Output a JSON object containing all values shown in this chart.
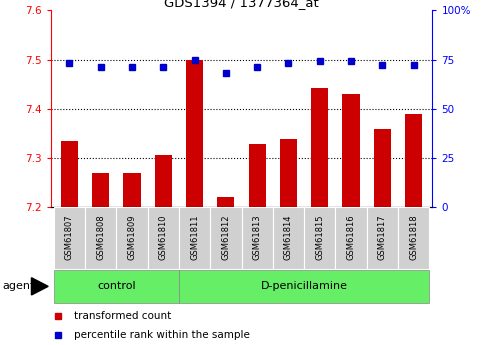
{
  "title": "GDS1394 / 1377364_at",
  "samples": [
    "GSM61807",
    "GSM61808",
    "GSM61809",
    "GSM61810",
    "GSM61811",
    "GSM61812",
    "GSM61813",
    "GSM61814",
    "GSM61815",
    "GSM61816",
    "GSM61817",
    "GSM61818"
  ],
  "red_values": [
    7.335,
    7.27,
    7.27,
    7.305,
    7.5,
    7.22,
    7.328,
    7.338,
    7.443,
    7.43,
    7.358,
    7.39
  ],
  "blue_values": [
    73,
    71,
    71,
    71,
    75,
    68,
    71,
    73,
    74,
    74,
    72,
    72
  ],
  "ylim_left": [
    7.2,
    7.6
  ],
  "ylim_right": [
    0,
    100
  ],
  "yticks_left": [
    7.2,
    7.3,
    7.4,
    7.5,
    7.6
  ],
  "yticks_right": [
    0,
    25,
    50,
    75,
    100
  ],
  "bar_color": "#CC0000",
  "dot_color": "#0000CC",
  "bar_baseline": 7.2,
  "control_group": {
    "label": "control",
    "indices": [
      0,
      1,
      2,
      3
    ]
  },
  "dp_group": {
    "label": "D-penicillamine",
    "indices": [
      4,
      5,
      6,
      7,
      8,
      9,
      10,
      11
    ]
  },
  "group_color": "#66EE66",
  "sample_box_color": "#D0D0D0",
  "agent_label": "agent",
  "legend_items": [
    {
      "color": "#CC0000",
      "label": "transformed count"
    },
    {
      "color": "#0000CC",
      "label": "percentile rank within the sample"
    }
  ]
}
